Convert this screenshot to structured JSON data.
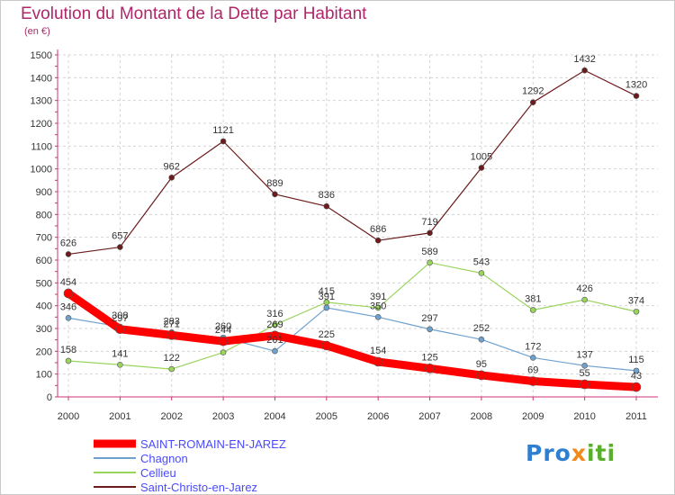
{
  "title": "Evolution du Montant de la Dette par Habitant",
  "subtitle": "(en €)",
  "logo": {
    "text": "Proxiti",
    "parts": [
      "Pro",
      "x",
      "iti"
    ]
  },
  "chart_data": {
    "type": "line",
    "x": [
      "2000",
      "2001",
      "2002",
      "2003",
      "2004",
      "2005",
      "2006",
      "2007",
      "2008",
      "2009",
      "2010",
      "2011"
    ],
    "ylim": [
      0,
      1500
    ],
    "yticks": [
      0,
      100,
      200,
      300,
      400,
      500,
      600,
      700,
      800,
      900,
      1000,
      1100,
      1200,
      1300,
      1400,
      1500
    ],
    "grid": true,
    "legend_position": "bottom-left",
    "series": [
      {
        "name": "Saint-Christo-en-Jarez",
        "color": "#6b1b1b",
        "width": 1.2,
        "values": [
          626,
          657,
          962,
          1121,
          889,
          836,
          686,
          719,
          1005,
          1292,
          1432,
          1320
        ],
        "labels": [
          "626",
          "657",
          "962",
          "1121",
          "889",
          "836",
          "686",
          "719",
          "1005",
          "1292",
          "1432",
          "1320"
        ]
      },
      {
        "name": "Cellieu",
        "color": "#99d45c",
        "width": 1.2,
        "values": [
          158,
          141,
          122,
          195,
          316,
          415,
          391,
          589,
          543,
          381,
          426,
          374
        ],
        "labels": [
          "158",
          "141",
          "122",
          "",
          "316",
          "415",
          "391",
          "589",
          "543",
          "381",
          "426",
          "374"
        ]
      },
      {
        "name": "Chagnon",
        "color": "#6fa1cf",
        "width": 1.2,
        "values": [
          346,
          308,
          283,
          260,
          201,
          391,
          350,
          297,
          252,
          172,
          137,
          115
        ],
        "labels": [
          "346",
          "308",
          "283",
          "260",
          "201",
          "391",
          "350",
          "297",
          "252",
          "172",
          "137",
          "115"
        ]
      },
      {
        "name": "SAINT-ROMAIN-EN-JAREZ",
        "color": "#ff0000",
        "width": 9,
        "values": [
          454,
          297,
          271,
          244,
          269,
          225,
          154,
          125,
          95,
          69,
          55,
          43
        ],
        "labels": [
          "454",
          "297",
          "271",
          "244",
          "269",
          "225",
          "154",
          "125",
          "95",
          "69",
          "55",
          "43"
        ]
      }
    ],
    "legend": [
      "SAINT-ROMAIN-EN-JAREZ",
      "Chagnon",
      "Cellieu",
      "Saint-Christo-en-Jarez"
    ]
  }
}
